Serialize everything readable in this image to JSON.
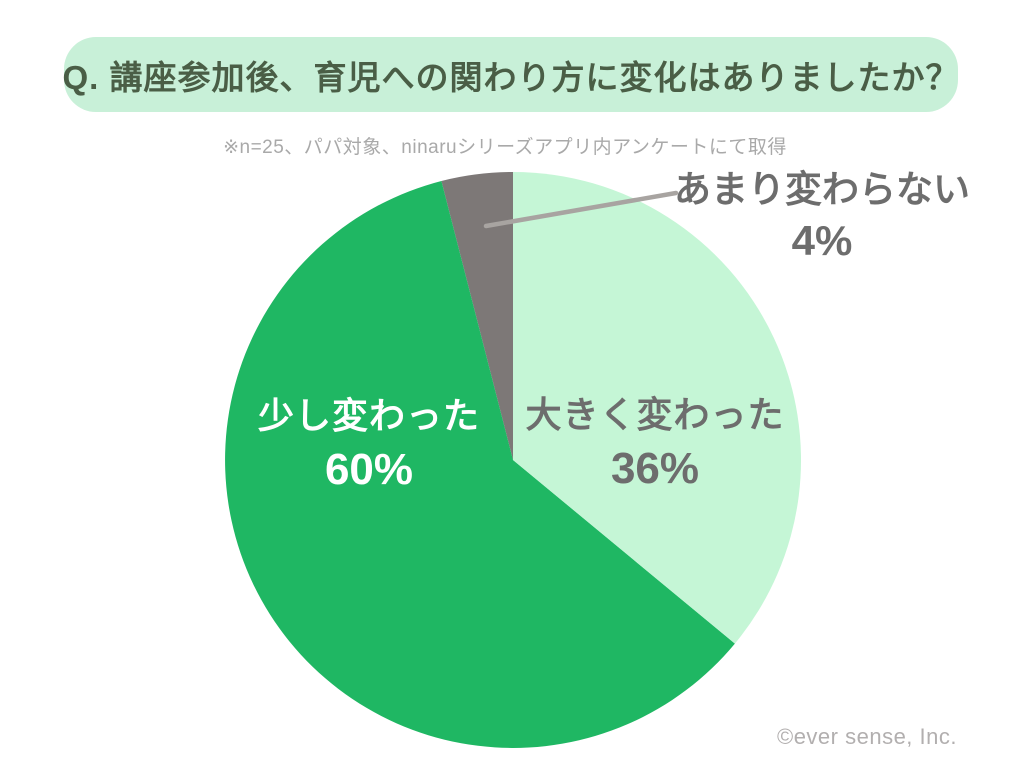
{
  "header": {
    "title": "Q. 講座参加後、育児への関わり方に変化はありましたか？"
  },
  "note": "※n=25、パパ対象、ninaruシリーズアプリ内アンケートにて取得",
  "footer": {
    "copyright": "©ever sense, Inc."
  },
  "palette": {
    "banner_bg": "#c8f0d8",
    "title_text": "#4a5e46",
    "light_green": "#c5f6d6",
    "dark_green": "#1fb763",
    "gray_slice": "#7d7877",
    "gray_label_text": "#6d6d6d",
    "white_label_text": "#ffffff",
    "note_text": "#a9a9a9",
    "callout_line": "#a8a4a1",
    "footer_text": "#b2afaf"
  },
  "chart_data": {
    "type": "pie",
    "title": "Q. 講座参加後、育児への関わり方に変化はありましたか？",
    "subtitle": "※n=25、パパ対象、ninaruシリーズアプリ内アンケートにて取得",
    "categories": [
      "大きく変わった",
      "少し変わった",
      "あまり変わらない"
    ],
    "values": [
      36,
      60,
      4
    ],
    "unit": "%",
    "colors": [
      "#c5f6d6",
      "#1fb763",
      "#7d7877"
    ],
    "start_angle_deg": 0,
    "direction": "clockwise",
    "legend_position": "labels-on-slices",
    "annotations": [
      {
        "target": "あまり変わらない",
        "style": "leader-line-callout",
        "position": "top-right"
      }
    ]
  },
  "labels": {
    "big_change": {
      "name": "大きく変わった",
      "pct": "36%"
    },
    "small_change": {
      "name": "少し変わった",
      "pct": "60%"
    },
    "no_change": {
      "name": "あまり変わらない",
      "pct": "4%"
    }
  }
}
